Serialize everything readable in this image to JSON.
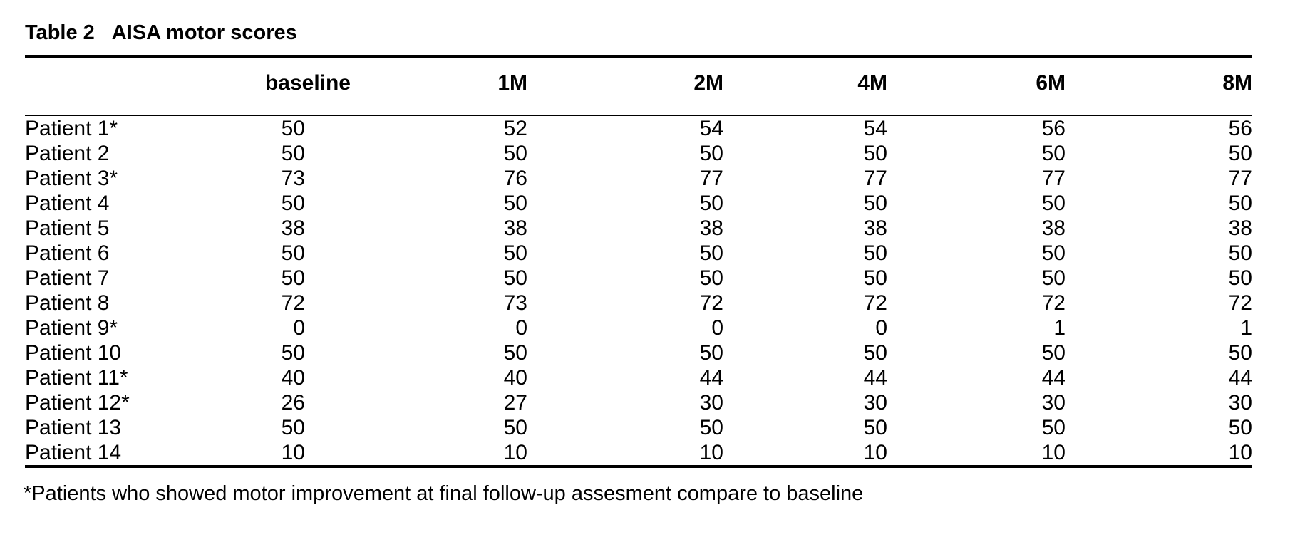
{
  "caption": {
    "label": "Table 2",
    "title": "AISA motor scores"
  },
  "table": {
    "header": {
      "patient_col": "",
      "cols": [
        "baseline",
        "1M",
        "2M",
        "4M",
        "6M",
        "8M"
      ]
    },
    "rows": [
      {
        "patient": "Patient 1*",
        "values": [
          "50",
          "52",
          "54",
          "54",
          "56",
          "56"
        ]
      },
      {
        "patient": "Patient 2",
        "values": [
          "50",
          "50",
          "50",
          "50",
          "50",
          "50"
        ]
      },
      {
        "patient": "Patient 3*",
        "values": [
          "73",
          "76",
          "77",
          "77",
          "77",
          "77"
        ]
      },
      {
        "patient": "Patient 4",
        "values": [
          "50",
          "50",
          "50",
          "50",
          "50",
          "50"
        ]
      },
      {
        "patient": "Patient 5",
        "values": [
          "38",
          "38",
          "38",
          "38",
          "38",
          "38"
        ]
      },
      {
        "patient": "Patient 6",
        "values": [
          "50",
          "50",
          "50",
          "50",
          "50",
          "50"
        ]
      },
      {
        "patient": "Patient 7",
        "values": [
          "50",
          "50",
          "50",
          "50",
          "50",
          "50"
        ]
      },
      {
        "patient": "Patient 8",
        "values": [
          "72",
          "73",
          "72",
          "72",
          "72",
          "72"
        ]
      },
      {
        "patient": "Patient 9*",
        "values": [
          "0",
          "0",
          "0",
          "0",
          "1",
          "1"
        ]
      },
      {
        "patient": "Patient 10",
        "values": [
          "50",
          "50",
          "50",
          "50",
          "50",
          "50"
        ]
      },
      {
        "patient": "Patient 11*",
        "values": [
          "40",
          "40",
          "44",
          "44",
          "44",
          "44"
        ]
      },
      {
        "patient": "Patient 12*",
        "values": [
          "26",
          "27",
          "30",
          "30",
          "30",
          "30"
        ]
      },
      {
        "patient": "Patient 13",
        "values": [
          "50",
          "50",
          "50",
          "50",
          "50",
          "50"
        ]
      },
      {
        "patient": "Patient 14",
        "values": [
          "10",
          "10",
          "10",
          "10",
          "10",
          "10"
        ]
      }
    ]
  },
  "footnote": "*Patients who showed motor improvement at final follow-up assesment compare to baseline",
  "colors": {
    "text": "#000000",
    "background": "#ffffff",
    "rule": "#000000"
  }
}
